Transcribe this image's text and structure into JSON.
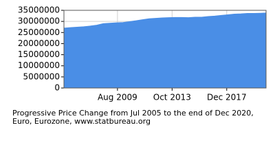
{
  "chart_data": {
    "type": "area",
    "title": [
      "Progressive Price Change from Jul 2005 to the end of Dec 2020,",
      "Euro, Eurozone, www.statbureau.org"
    ],
    "x": [
      "2005-07",
      "2006-01",
      "2006-07",
      "2007-01",
      "2007-07",
      "2008-01",
      "2008-07",
      "2009-01",
      "2009-07",
      "2010-01",
      "2010-07",
      "2011-01",
      "2011-07",
      "2012-01",
      "2012-07",
      "2013-01",
      "2013-07",
      "2014-01",
      "2014-07",
      "2015-01",
      "2015-07",
      "2016-01",
      "2016-07",
      "2017-01",
      "2017-07",
      "2018-01",
      "2018-07",
      "2019-01",
      "2019-07",
      "2020-01",
      "2020-07",
      "2020-12"
    ],
    "series": [
      {
        "color": "#4a8ee6",
        "values": [
          27000000,
          27200000,
          27400000,
          27600000,
          27900000,
          28300000,
          29000000,
          29200000,
          29400000,
          29500000,
          29900000,
          30300000,
          30800000,
          31200000,
          31400000,
          31600000,
          31700000,
          31800000,
          31800000,
          31700000,
          31900000,
          31900000,
          32200000,
          32400000,
          32700000,
          33000000,
          33300000,
          33400000,
          33600000,
          33600000,
          33700000,
          33800000
        ]
      }
    ],
    "xlim": [
      "2005-07",
      "2020-12"
    ],
    "xticks": [
      {
        "value": "2009-08",
        "label": "Aug 2009"
      },
      {
        "value": "2013-10",
        "label": "Oct 2013"
      },
      {
        "value": "2017-12",
        "label": "Dec 2017"
      }
    ],
    "ylim": [
      0,
      35000000
    ],
    "yticks": [
      0,
      5000000,
      10000000,
      15000000,
      20000000,
      25000000,
      30000000,
      35000000
    ],
    "grid": true
  }
}
